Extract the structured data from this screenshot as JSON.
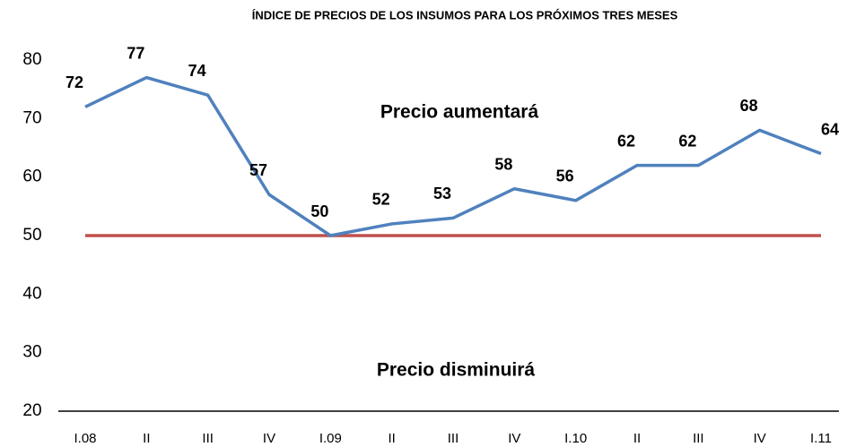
{
  "chart_data": {
    "type": "line",
    "title": "ÍNDICE DE PRECIOS DE LOS INSUMOS PARA LOS PRÓXIMOS TRES MESES",
    "categories": [
      "I.08",
      "II",
      "III",
      "IV",
      "I.09",
      "II",
      "III",
      "IV",
      "I.10",
      "II",
      "III",
      "IV",
      "I.11"
    ],
    "series": [
      {
        "color": "#4f81bd",
        "values": [
          72,
          77,
          74,
          57,
          50,
          52,
          53,
          58,
          56,
          62,
          62,
          68,
          64
        ]
      }
    ],
    "reference_line": {
      "value": 50,
      "color": "#c0504d"
    },
    "annotations": [
      "Precio aumentará",
      "Precio disminuirá"
    ],
    "ylim": [
      20,
      80
    ],
    "yticks": [
      20,
      30,
      40,
      50,
      60,
      70,
      80
    ],
    "grid": false
  }
}
